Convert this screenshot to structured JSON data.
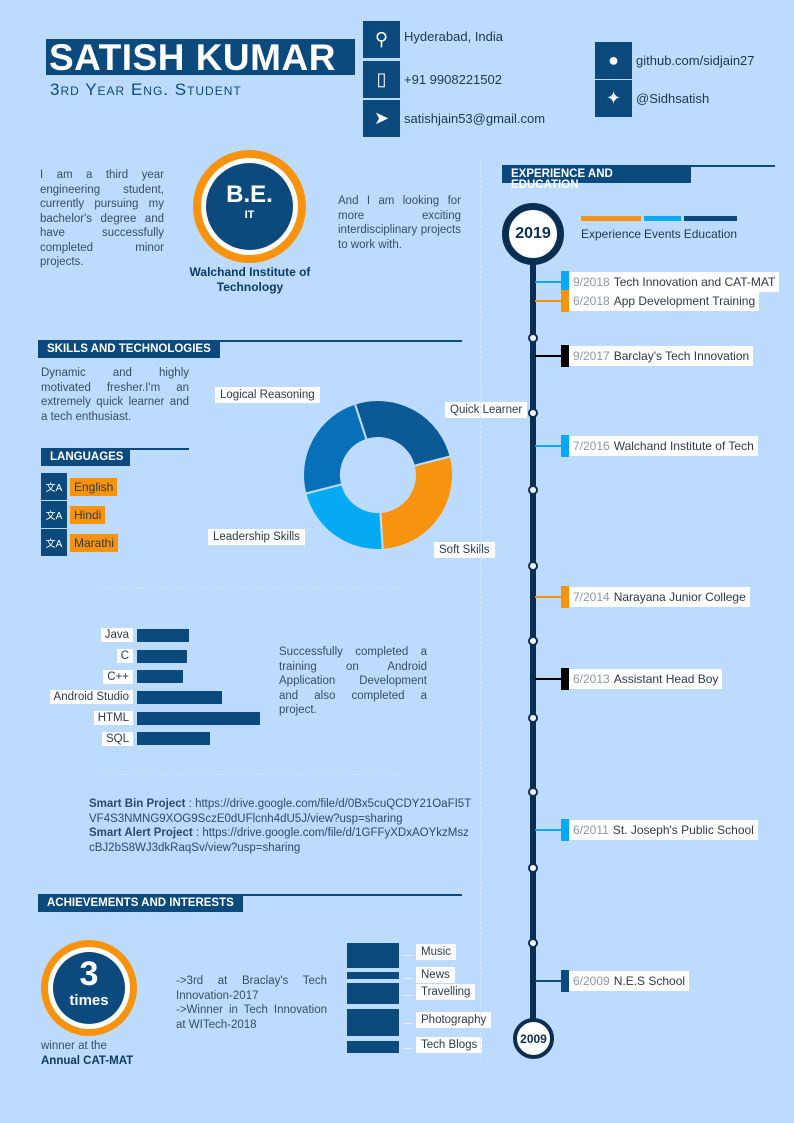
{
  "header": {
    "name": "SATISH KUMAR",
    "role": "3rd Year Eng. Student"
  },
  "contact": [
    {
      "icon": "location-pin-icon",
      "text": "Hyderabad, India"
    },
    {
      "icon": "mobile-phone-icon",
      "text": "+91 9908221502"
    },
    {
      "icon": "paper-plane-icon",
      "text": "satishjain53@gmail.com"
    }
  ],
  "social": [
    {
      "icon": "github-icon",
      "text": "github.com/sidjain27"
    },
    {
      "icon": "twitter-icon",
      "text": "@Sidhsatish"
    }
  ],
  "intro": {
    "left": "I am a third year engineering student, currently pursuing my bachelor's degree and have successfully completed minor projects.",
    "right": "And I am looking for more exciting interdisciplinary projects to work with.",
    "degree": "B.E.",
    "branch": "IT",
    "college": "Walchand Institute of Technology"
  },
  "skills": {
    "title": "SKILLS AND TECHNOLOGIES",
    "text": "Dynamic and highly motivated fresher.I'm an extremely quick learner and a tech enthusiast.",
    "training": "Successfully completed a training on Android Application Development and also completed a project."
  },
  "languages": {
    "title": "LANGUAGES",
    "items": [
      "English",
      "Hindi",
      "Marathi"
    ]
  },
  "chart_data": [
    {
      "type": "pie",
      "variant": "donut",
      "categories": [
        "Quick Learner",
        "Soft Skills",
        "Leadership Skills",
        "Logical Reasoning"
      ],
      "values": [
        26,
        28,
        22,
        24
      ],
      "colors": [
        "#0b5a96",
        "#f7930f",
        "#05aaf2",
        "#0870b8"
      ]
    },
    {
      "type": "bar",
      "orientation": "horizontal",
      "categories": [
        "Java",
        "C",
        "C++",
        "Android Studio",
        "HTML",
        "SQL"
      ],
      "values": [
        42,
        41,
        37,
        69,
        100,
        59
      ]
    }
  ],
  "projects": [
    {
      "name": "Smart Bin Project",
      "link": "https://drive.google.com/file/d/0Bx5cuQCDY21OaFI5TVF4S3NMNG9XOG9SczE0dUFlcnh4dU5J/view?usp=sharing"
    },
    {
      "name": "Smart Alert Project",
      "link": "https://drive.google.com/file/d/1GFFyXDxAOYkzMszcBJ2bS8WJ3dkRaqSv/view?usp=sharing"
    }
  ],
  "achievements": {
    "title": "ACHIEVEMENTS AND INTERESTS",
    "count": "3",
    "unit": "times",
    "caption1": "winner at the",
    "caption2": "Annual CAT-MAT",
    "text1": "->3rd at Braclay's Tech Innovation-2017",
    "text2": "->Winner in Tech Innovation at WITech-2018"
  },
  "interests": [
    "Music",
    "News",
    "Travelling",
    "Photography",
    "Tech Blogs"
  ],
  "timeline": {
    "title": "EXPERIENCE AND EDUCATION",
    "start": "2019",
    "end": "2009",
    "legend": [
      {
        "label": "Experience",
        "color": "#f7930f"
      },
      {
        "label": "Events",
        "color": "#05aaf2"
      },
      {
        "label": "Education",
        "color": "#0c4a7d"
      }
    ],
    "entries": [
      {
        "date": "9/2018",
        "text": "Tech Innovation and CAT-MAT",
        "color": "#05aaf2"
      },
      {
        "date": "6/2018",
        "text": "App Development Training",
        "color": "#f7930f"
      },
      {
        "date": "9/2017",
        "text": "Barclay's Tech Innovation",
        "color": "#000000"
      },
      {
        "date": "7/2016",
        "text": "Walchand Institute of Tech",
        "color": "#05aaf2"
      },
      {
        "date": "7/2014",
        "text": "Narayana Junior College",
        "color": "#f7930f"
      },
      {
        "date": "6/2013",
        "text": "Assistant Head Boy",
        "color": "#000000"
      },
      {
        "date": "6/2011",
        "text": "St. Joseph's Public School",
        "color": "#05aaf2"
      },
      {
        "date": "6/2009",
        "text": "N.E.S School",
        "color": "#0c4a7d"
      }
    ]
  }
}
